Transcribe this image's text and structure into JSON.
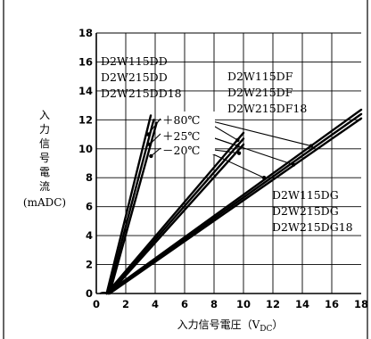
{
  "chart_data": {
    "type": "line",
    "title": "",
    "xlabel": "入力信号電圧（V",
    "xlabel_sub": "DC",
    "xlabel_close": "）",
    "ylabel_lines": [
      "入",
      "力",
      "信",
      "号",
      "電",
      "流"
    ],
    "ylabel_unit": "(mADC)",
    "xlim": [
      0,
      18
    ],
    "ylim": [
      0,
      18
    ],
    "x_ticks": [
      0,
      2,
      4,
      6,
      8,
      10,
      12,
      14,
      16,
      18
    ],
    "y_ticks": [
      0,
      2,
      4,
      6,
      8,
      10,
      12,
      14,
      16,
      18
    ],
    "grid": true,
    "groups": [
      {
        "name": "D2W115DD / D2W215DD / D2W215DD18",
        "labels": [
          "D2W115DD",
          "D2W215DD",
          "D2W215DD18"
        ],
        "series": [
          {
            "name": "+80℃",
            "x": [
              0.7,
              3.7
            ],
            "y": [
              0,
              12.3
            ]
          },
          {
            "name": "+25℃",
            "x": [
              0.8,
              3.9
            ],
            "y": [
              0,
              12.0
            ]
          },
          {
            "name": "−20℃",
            "x": [
              0.9,
              4.1
            ],
            "y": [
              0,
              11.8
            ]
          }
        ]
      },
      {
        "name": "D2W115DF / D2W215DF / D2W215DF18",
        "labels": [
          "D2W115DF",
          "D2W215DF",
          "D2W215DF18"
        ],
        "series": [
          {
            "name": "+80℃",
            "x": [
              0.7,
              10.0
            ],
            "y": [
              0,
              11.1
            ]
          },
          {
            "name": "+25℃",
            "x": [
              0.8,
              10.0
            ],
            "y": [
              0,
              10.7
            ]
          },
          {
            "name": "−20℃",
            "x": [
              0.9,
              10.0
            ],
            "y": [
              0,
              10.3
            ]
          }
        ]
      },
      {
        "name": "D2W115DG / D2W215DG / D2W215DG18",
        "labels": [
          "D2W115DG",
          "D2W215DG",
          "D2W215DG18"
        ],
        "series": [
          {
            "name": "+80℃",
            "x": [
              0.7,
              18.0
            ],
            "y": [
              0,
              12.7
            ]
          },
          {
            "name": "+25℃",
            "x": [
              0.8,
              18.0
            ],
            "y": [
              0,
              12.4
            ]
          },
          {
            "name": "−20℃",
            "x": [
              0.9,
              18.0
            ],
            "y": [
              0,
              12.1
            ]
          }
        ]
      }
    ],
    "temperature_labels": [
      "＋80℃",
      "＋25℃",
      "－20℃"
    ]
  }
}
